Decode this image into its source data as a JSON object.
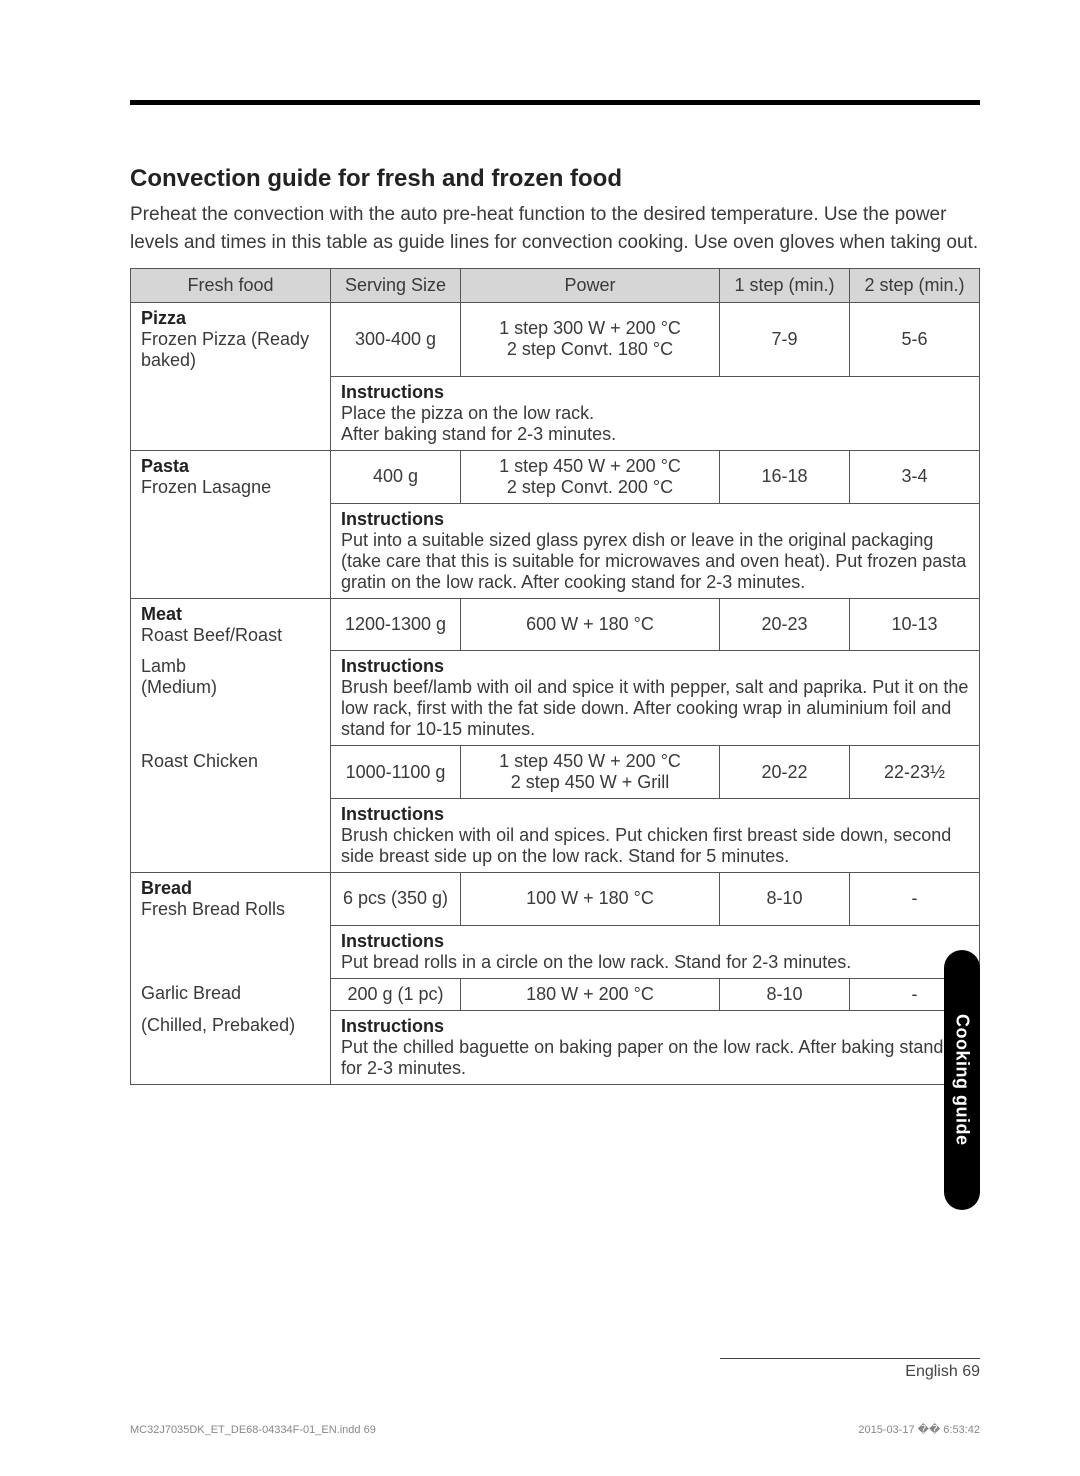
{
  "heading": "Convection guide for fresh and frozen food",
  "intro": "Preheat the convection with the auto pre-heat function to the desired temperature. Use the power levels and times in this table as guide lines for convection cooking. Use oven gloves when taking out.",
  "table": {
    "headers": {
      "food": "Fresh food",
      "size": "Serving Size",
      "power": "Power",
      "step1": "1 step (min.)",
      "step2": "2 step (min.)"
    },
    "pizza": {
      "cat": "Pizza",
      "name": "Frozen Pizza (Ready baked)",
      "size": "300-400 g",
      "power1": "1 step 300 W + 200 °C",
      "power2": "2 step Convt. 180 °C",
      "s1": "7-9",
      "s2": "5-6",
      "instrLabel": "Instructions",
      "instr1": "Place the pizza on the low rack.",
      "instr2": "After baking stand for 2-3 minutes."
    },
    "pasta": {
      "cat": "Pasta",
      "name": "Frozen Lasagne",
      "size": "400 g",
      "power1": "1 step 450 W + 200 °C",
      "power2": "2 step Convt. 200 °C",
      "s1": "16-18",
      "s2": "3-4",
      "instrLabel": "Instructions",
      "instr": "Put into a suitable sized glass pyrex dish or leave in the original packaging (take care that this is suitable for microwaves and oven heat). Put frozen pasta gratin on the low rack. After cooking stand for 2-3 minutes."
    },
    "meat": {
      "cat": "Meat",
      "beef": {
        "name": "Roast Beef/Roast Lamb (Medium)",
        "nameLine1": "Roast Beef/Roast",
        "nameLine2": "Lamb",
        "nameLine3": "(Medium)",
        "size": "1200-1300 g",
        "power": "600 W + 180 °C",
        "s1": "20-23",
        "s2": "10-13",
        "instrLabel": "Instructions",
        "instr": "Brush beef/lamb with oil and spice it with pepper, salt and paprika. Put it on the low rack, first with the fat side down. After cooking wrap in aluminium foil and stand for 10-15 minutes."
      },
      "chicken": {
        "name": "Roast Chicken",
        "size": "1000-1100 g",
        "power1": "1 step 450 W + 200 °C",
        "power2": "2 step 450 W + Grill",
        "s1": "20-22",
        "s2": "22-23½",
        "instrLabel": "Instructions",
        "instr": "Brush chicken with oil and spices. Put chicken first breast side down, second side breast side up on the low rack. Stand for 5 minutes."
      }
    },
    "bread": {
      "cat": "Bread",
      "rolls": {
        "name": "Fresh Bread Rolls",
        "size": "6 pcs (350 g)",
        "power": "100 W + 180 °C",
        "s1": "8-10",
        "s2": "-",
        "instrLabel": "Instructions",
        "instr": "Put bread rolls in a circle on the low rack. Stand for 2-3 minutes."
      },
      "garlic": {
        "name": "Garlic Bread (Chilled, Prebaked)",
        "nameLine1": "Garlic Bread",
        "nameLine2": "(Chilled, Prebaked)",
        "size": "200 g (1 pc)",
        "power": "180 W + 200 °C",
        "s1": "8-10",
        "s2": "-",
        "instrLabel": "Instructions",
        "instr": "Put the chilled baguette on baking paper on the low rack. After baking stand for 2-3 minutes."
      }
    }
  },
  "sideTab": "Cooking guide",
  "footerPage": "English 69",
  "footerLeft": "MC32J7035DK_ET_DE68-04334F-01_EN.indd   69",
  "footerRight": "2015-03-17   �� 6:53:42"
}
